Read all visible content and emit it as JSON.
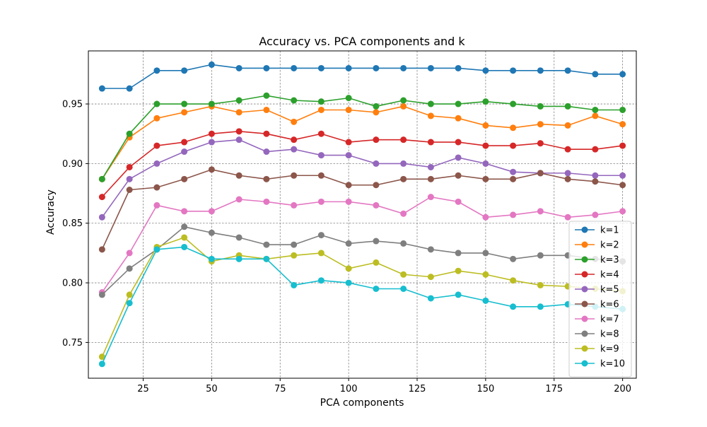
{
  "chart_data": {
    "type": "line",
    "title": "Accuracy vs. PCA components and k",
    "xlabel": "PCA components",
    "ylabel": "Accuracy",
    "xlim": [
      5,
      205
    ],
    "ylim": [
      0.72,
      0.9945
    ],
    "xticks": [
      25,
      50,
      75,
      100,
      125,
      150,
      175,
      200
    ],
    "xtick_labels": [
      "25",
      "50",
      "75",
      "100",
      "125",
      "150",
      "175",
      "200"
    ],
    "yticks": [
      0.75,
      0.8,
      0.85,
      0.9,
      0.95
    ],
    "ytick_labels": [
      "0.75",
      "0.80",
      "0.85",
      "0.90",
      "0.95"
    ],
    "grid": true,
    "grid_style": "dashed",
    "legend_position": "lower-right",
    "x": [
      10,
      20,
      30,
      40,
      50,
      60,
      70,
      80,
      90,
      100,
      110,
      120,
      130,
      140,
      150,
      160,
      170,
      180,
      190,
      200
    ],
    "series": [
      {
        "name": "k=1",
        "color": "#1f77b4",
        "values": [
          0.963,
          0.963,
          0.978,
          0.978,
          0.983,
          0.98,
          0.98,
          0.98,
          0.98,
          0.98,
          0.98,
          0.98,
          0.98,
          0.98,
          0.978,
          0.978,
          0.978,
          0.978,
          0.975,
          0.975
        ]
      },
      {
        "name": "k=2",
        "color": "#ff7f0e",
        "values": [
          0.887,
          0.922,
          0.938,
          0.943,
          0.948,
          0.943,
          0.945,
          0.935,
          0.945,
          0.945,
          0.943,
          0.948,
          0.94,
          0.938,
          0.932,
          0.93,
          0.933,
          0.932,
          0.94,
          0.933
        ]
      },
      {
        "name": "k=3",
        "color": "#2ca02c",
        "values": [
          0.887,
          0.925,
          0.95,
          0.95,
          0.95,
          0.953,
          0.957,
          0.953,
          0.952,
          0.955,
          0.948,
          0.953,
          0.95,
          0.95,
          0.952,
          0.95,
          0.948,
          0.948,
          0.945,
          0.945
        ]
      },
      {
        "name": "k=4",
        "color": "#d62728",
        "values": [
          0.872,
          0.897,
          0.915,
          0.918,
          0.925,
          0.927,
          0.925,
          0.92,
          0.925,
          0.918,
          0.92,
          0.92,
          0.918,
          0.918,
          0.915,
          0.915,
          0.917,
          0.912,
          0.912,
          0.915
        ]
      },
      {
        "name": "k=5",
        "color": "#9467bd",
        "values": [
          0.855,
          0.887,
          0.9,
          0.91,
          0.918,
          0.92,
          0.91,
          0.912,
          0.907,
          0.907,
          0.9,
          0.9,
          0.897,
          0.905,
          0.9,
          0.893,
          0.892,
          0.892,
          0.89,
          0.89
        ]
      },
      {
        "name": "k=6",
        "color": "#8c564b",
        "values": [
          0.828,
          0.878,
          0.88,
          0.887,
          0.895,
          0.89,
          0.887,
          0.89,
          0.89,
          0.882,
          0.882,
          0.887,
          0.887,
          0.89,
          0.887,
          0.887,
          0.892,
          0.887,
          0.885,
          0.882
        ]
      },
      {
        "name": "k=7",
        "color": "#e377c2",
        "values": [
          0.792,
          0.825,
          0.865,
          0.86,
          0.86,
          0.87,
          0.868,
          0.865,
          0.868,
          0.868,
          0.865,
          0.858,
          0.872,
          0.868,
          0.855,
          0.857,
          0.86,
          0.855,
          0.857,
          0.86
        ]
      },
      {
        "name": "k=8",
        "color": "#7f7f7f",
        "values": [
          0.79,
          0.812,
          0.828,
          0.847,
          0.842,
          0.838,
          0.832,
          0.832,
          0.84,
          0.833,
          0.835,
          0.833,
          0.828,
          0.825,
          0.825,
          0.82,
          0.823,
          0.823,
          0.82,
          0.818
        ]
      },
      {
        "name": "k=9",
        "color": "#bcbd22",
        "values": [
          0.738,
          0.79,
          0.83,
          0.838,
          0.818,
          0.823,
          0.82,
          0.823,
          0.825,
          0.812,
          0.817,
          0.807,
          0.805,
          0.81,
          0.807,
          0.802,
          0.798,
          0.797,
          0.795,
          0.793
        ]
      },
      {
        "name": "k=10",
        "color": "#17becf",
        "values": [
          0.732,
          0.783,
          0.828,
          0.83,
          0.82,
          0.82,
          0.82,
          0.798,
          0.802,
          0.8,
          0.795,
          0.795,
          0.787,
          0.79,
          0.785,
          0.78,
          0.78,
          0.782,
          0.78,
          0.778
        ]
      }
    ]
  }
}
